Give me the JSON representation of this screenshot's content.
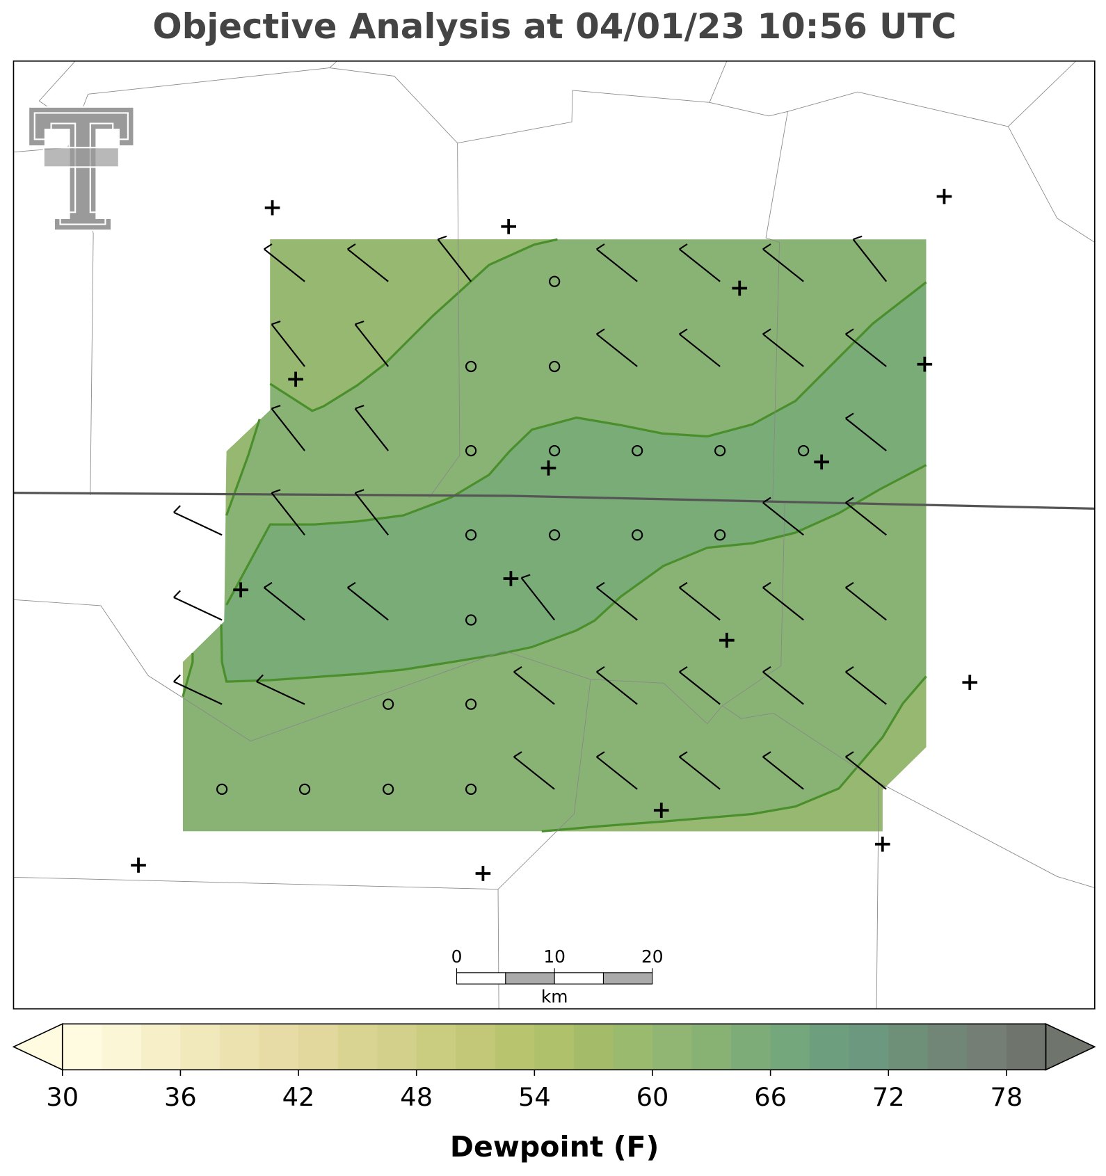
{
  "title": "Objective Analysis at 04/01/23 10:56 UTC",
  "scale_bar": {
    "ticks": [
      0,
      10,
      20
    ],
    "unit": "km"
  },
  "colorbar": {
    "label": "Dewpoint (F)",
    "lim": [
      30,
      80
    ],
    "ticks": [
      30,
      36,
      42,
      48,
      54,
      60,
      66,
      72,
      78
    ],
    "colors": [
      "#fefbe0",
      "#fbf6d6",
      "#f6efc8",
      "#f1e8bc",
      "#ece2b0",
      "#e8dca6",
      "#e2d79c",
      "#dad493",
      "#d2d08a",
      "#cacc80",
      "#c2c877",
      "#b8c46e",
      "#afc16a",
      "#a4bc69",
      "#9aba6e",
      "#91b572",
      "#88b174",
      "#7eac78",
      "#74a77c",
      "#6d9f7f",
      "#6c9880",
      "#6e9079",
      "#728677",
      "#747e74",
      "#6f746c"
    ]
  }
}
